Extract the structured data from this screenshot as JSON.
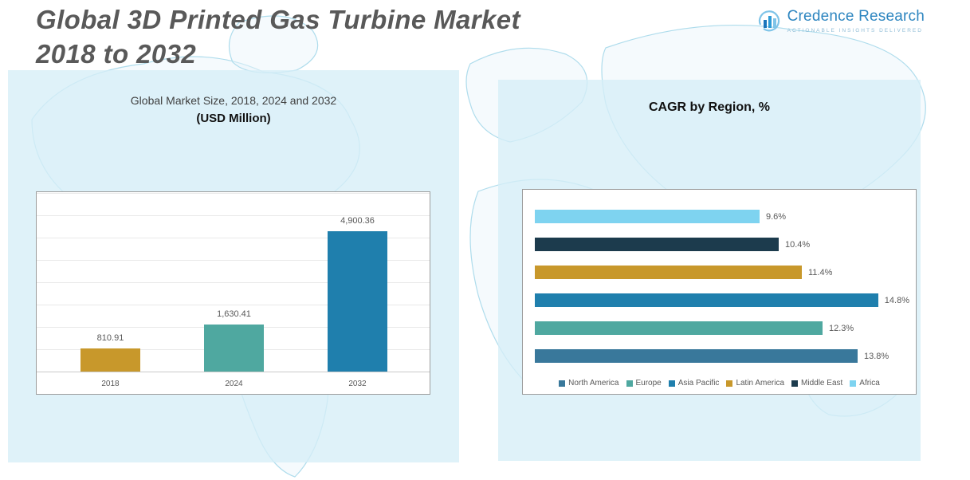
{
  "page": {
    "title_line1": "Global 3D Printed Gas Turbine Market",
    "title_line2": "2018 to 2032"
  },
  "logo": {
    "name": "Credence Research",
    "tagline": "Actionable Insights Delivered"
  },
  "left_chart": {
    "title_line1": "Global Market Size, 2018, 2024 and 2032",
    "title_line2": "(USD Million)"
  },
  "right_chart": {
    "title": "CAGR by Region, %"
  },
  "colors": {
    "panel_bg": "#d6eef7",
    "title_text": "#595959",
    "brand_blue": "#2e86c0",
    "gold": "#C8982B",
    "teal": "#4FA8A0",
    "blue": "#1F7FAD",
    "light_blue": "#7ED3F0",
    "navy": "#1C3B4D",
    "steel_blue": "#39789B"
  },
  "chart_data": [
    {
      "type": "bar",
      "title": "Global Market Size, 2018, 2024 and 2032 (USD Million)",
      "categories": [
        "2018",
        "2024",
        "2032"
      ],
      "values": [
        810.91,
        1630.41,
        4900.36
      ],
      "value_labels": [
        "810.91",
        "1,630.41",
        "4,900.36"
      ],
      "colors": [
        "#C8982B",
        "#4FA8A0",
        "#1F7FAD"
      ],
      "ylabel": "USD Million",
      "ylim": [
        0,
        5500
      ],
      "grid": true,
      "legend_position": "none"
    },
    {
      "type": "bar",
      "orientation": "horizontal",
      "title": "CAGR by Region, %",
      "rows_top_to_bottom": [
        "Africa",
        "Middle East",
        "Latin America",
        "Asia Pacific",
        "Europe",
        "North America"
      ],
      "values": [
        9.6,
        10.4,
        11.4,
        14.8,
        12.3,
        13.8
      ],
      "value_labels": [
        "9.6%",
        "10.4%",
        "11.4%",
        "14.8%",
        "12.3%",
        "13.8%"
      ],
      "colors": [
        "#7ED3F0",
        "#1C3B4D",
        "#C8982B",
        "#1F7FAD",
        "#4FA8A0",
        "#39789B"
      ],
      "xlim": [
        0,
        16
      ],
      "grid": false,
      "legend_position": "bottom",
      "legend": [
        {
          "label": "North America",
          "color": "#39789B"
        },
        {
          "label": "Europe",
          "color": "#4FA8A0"
        },
        {
          "label": "Asia Pacific",
          "color": "#1F7FAD"
        },
        {
          "label": "Latin America",
          "color": "#C8982B"
        },
        {
          "label": "Middle East",
          "color": "#1C3B4D"
        },
        {
          "label": "Africa",
          "color": "#7ED3F0"
        }
      ]
    }
  ]
}
